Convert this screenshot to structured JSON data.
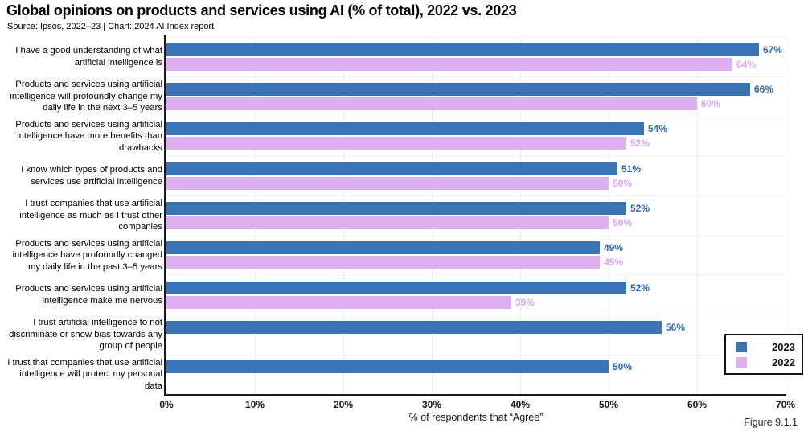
{
  "header": {
    "title": "Global opinions on products and services using AI (% of total), 2022 vs. 2023",
    "source": "Source: Ipsos, 2022–23 | Chart: 2024 AI Index report"
  },
  "figure_label": "Figure 9.1.1",
  "chart_data": {
    "type": "bar",
    "orientation": "horizontal",
    "title": "Global opinions on products and services using AI (% of total), 2022 vs. 2023",
    "xlabel": "% of respondents that “Agree”",
    "ylabel": "",
    "xlim": [
      0,
      70
    ],
    "x_ticks": [
      "0%",
      "10%",
      "20%",
      "30%",
      "40%",
      "50%",
      "60%",
      "70%"
    ],
    "grid": true,
    "legend_position": "bottom-right",
    "value_suffix": "%",
    "categories": [
      "I have a good understanding of what artificial intelligence is",
      "Products and services using artificial intelligence will profoundly change my daily life in the next 3–5 years",
      "Products and services using artificial intelligence have more benefits than drawbacks",
      "I know which types of products and services use artificial intelligence",
      "I trust companies that use artificial intelligence as much as I trust other companies",
      "Products and services using artificial intelligence have profoundly changed my daily life in the past 3–5 years",
      "Products and services using artificial intelligence make me nervous",
      "I trust artificial intelligence to not discriminate or show bias towards any group of people",
      "I trust that companies that use artificial intelligence will protect my personal data"
    ],
    "series": [
      {
        "name": "2023",
        "color": "#3B74B4",
        "label_color": "#2E68B0",
        "values": [
          67,
          66,
          54,
          51,
          52,
          49,
          52,
          56,
          50
        ]
      },
      {
        "name": "2022",
        "color": "#DFB0F0",
        "label_color": "#D9A6F2",
        "values": [
          64,
          60,
          52,
          50,
          50,
          49,
          39,
          null,
          null
        ]
      }
    ],
    "colors": {
      "axis": "#1a1a1a",
      "grid_vertical": "#ebebeb",
      "grid_horizontal": "#f3f3f3",
      "text": "#000000",
      "figure_label": "#1b2340"
    }
  }
}
